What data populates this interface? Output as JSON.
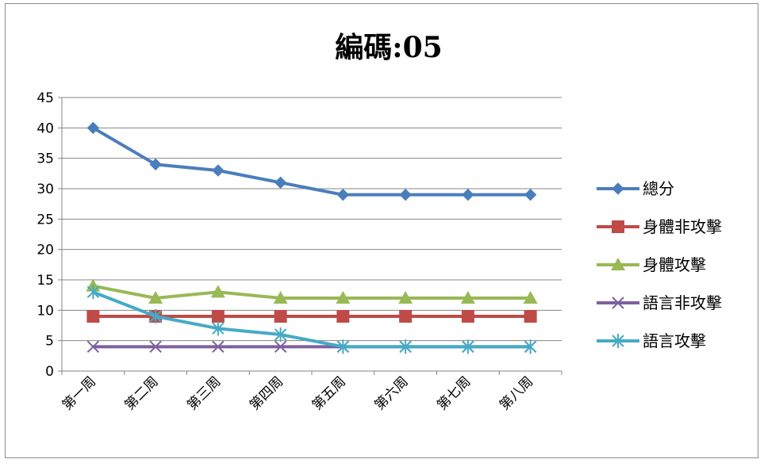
{
  "chart_data": {
    "type": "line",
    "title": "編碼:05",
    "categories": [
      "第一周",
      "第二周",
      "第三周",
      "第四周",
      "第五周",
      "第六周",
      "第七周",
      "第八周"
    ],
    "ylim": [
      0,
      45
    ],
    "yticks": [
      0,
      5,
      10,
      15,
      20,
      25,
      30,
      35,
      40,
      45
    ],
    "grid": true,
    "legend_position": "right",
    "series": [
      {
        "name": "總分",
        "color": "#4a7ebb",
        "marker": "diamond",
        "values": [
          40,
          34,
          33,
          31,
          29,
          29,
          29,
          29
        ]
      },
      {
        "name": "身體非攻擊",
        "color": "#be4b48",
        "marker": "square",
        "values": [
          9,
          9,
          9,
          9,
          9,
          9,
          9,
          9
        ]
      },
      {
        "name": "身體攻擊",
        "color": "#98b954",
        "marker": "triangle",
        "values": [
          14,
          12,
          13,
          12,
          12,
          12,
          12,
          12
        ]
      },
      {
        "name": "語言非攻擊",
        "color": "#7d60a0",
        "marker": "x",
        "values": [
          4,
          4,
          4,
          4,
          4,
          4,
          4,
          4
        ]
      },
      {
        "name": "語言攻擊",
        "color": "#46aac5",
        "marker": "star",
        "values": [
          13,
          9,
          7,
          6,
          4,
          4,
          4,
          4
        ]
      }
    ]
  }
}
